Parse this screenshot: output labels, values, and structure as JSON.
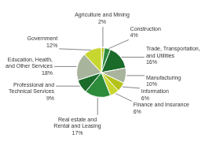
{
  "chart_data": {
    "type": "pie",
    "categories": [
      "Agriculture and Mining",
      "Construction",
      "Trade, Transportation,\nand Utilities",
      "Manufacturing",
      "Information",
      "Finance and Insurance",
      "Real estate and\nRental and Leasing",
      "Professional and\nTechnical Services",
      "Education, Health,\nand Other Services",
      "Government"
    ],
    "values": [
      2,
      4,
      16,
      10,
      6,
      6,
      17,
      9,
      18,
      12
    ],
    "value_labels": [
      "2%",
      "4%",
      "16%",
      "10%",
      "6%",
      "6%",
      "17%",
      "9%",
      "18%",
      "12%"
    ],
    "data_labels": true,
    "colors": [
      "#b5c21a",
      "#2d8b3c",
      "#1b6b2a",
      "#a8b49c",
      "#b5c21a",
      "#c8d630",
      "#2d8b3c",
      "#1b6b2a",
      "#a8b49c",
      "#c8d630"
    ]
  }
}
